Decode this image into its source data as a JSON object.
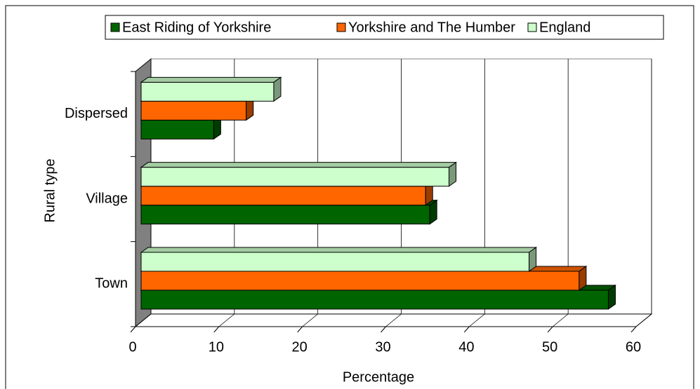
{
  "chart_data": {
    "type": "bar3d_horizontal",
    "categories": [
      "Town",
      "Village",
      "Dispersed"
    ],
    "series": [
      {
        "name": "East Riding of Yorkshire",
        "color": "#006400",
        "values": [
          56,
          34.6,
          8.7
        ]
      },
      {
        "name": "Yorkshire and The Humber",
        "color": "#ff6600",
        "values": [
          52.5,
          34.1,
          12.6
        ]
      },
      {
        "name": "England",
        "color": "#ccffcc",
        "values": [
          46.5,
          36.9,
          15.9
        ]
      }
    ],
    "x_label": "Percentage",
    "y_label": "Rural type",
    "xlim": [
      0,
      60
    ],
    "xticks": [
      0,
      10,
      20,
      30,
      40,
      50,
      60
    ],
    "grid": true,
    "legend": "top"
  }
}
